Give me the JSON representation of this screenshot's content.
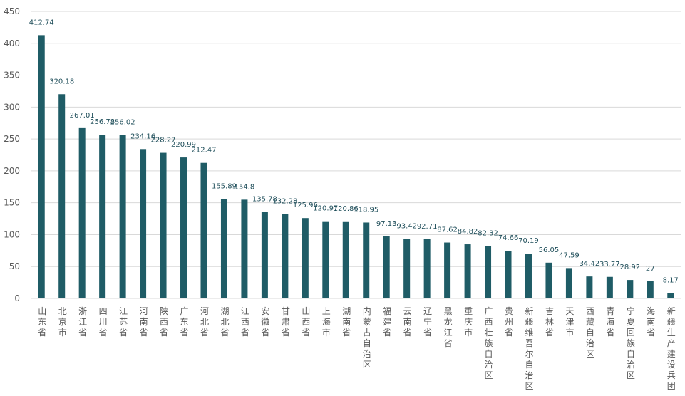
{
  "chart_data": {
    "type": "bar",
    "title": "",
    "xlabel": "",
    "ylabel": "",
    "ylim": [
      0,
      450
    ],
    "yticks": [
      0,
      50,
      100,
      150,
      200,
      250,
      300,
      350,
      400,
      450
    ],
    "grid": true,
    "bar_color": "#1f5c66",
    "categories": [
      "山东省",
      "北京市",
      "浙江省",
      "四川省",
      "江苏省",
      "河南省",
      "陕西省",
      "广东省",
      "河北省",
      "湖北省",
      "江西省",
      "安徽省",
      "甘肃省",
      "山西省",
      "上海市",
      "湖南省",
      "内蒙古自治区",
      "福建省",
      "云南省",
      "辽宁省",
      "黑龙江省",
      "重庆市",
      "广西壮族自治区",
      "贵州省",
      "新疆维吾尔自治区",
      "吉林省",
      "天津市",
      "西藏自治区",
      "青海省",
      "宁夏回族自治区",
      "海南省",
      "新疆生产建设兵团"
    ],
    "values": [
      412.74,
      320.18,
      267.01,
      256.78,
      256.02,
      234.16,
      228.27,
      220.99,
      212.47,
      155.89,
      154.8,
      135.78,
      132.28,
      125.96,
      120.97,
      120.86,
      118.95,
      97.13,
      93.42,
      92.71,
      87.62,
      84.82,
      82.32,
      74.66,
      70.19,
      56.05,
      47.59,
      34.42,
      33.77,
      28.92,
      27,
      8.17
    ],
    "value_labels": [
      "412.74",
      "320.18",
      "267.01",
      "256.78",
      "256.02",
      "234.16",
      "228.27",
      "220.99",
      "212.47",
      "155.89",
      "154.8",
      "135.78",
      "132.28",
      "125.96",
      "120.97",
      "120.86",
      "118.95",
      "97.13",
      "93.42",
      "92.71",
      "87.62",
      "84.82",
      "82.32",
      "74.66",
      "70.19",
      "56.05",
      "47.59",
      "34.42",
      "33.77",
      "28.92",
      "27",
      "8.17"
    ]
  }
}
